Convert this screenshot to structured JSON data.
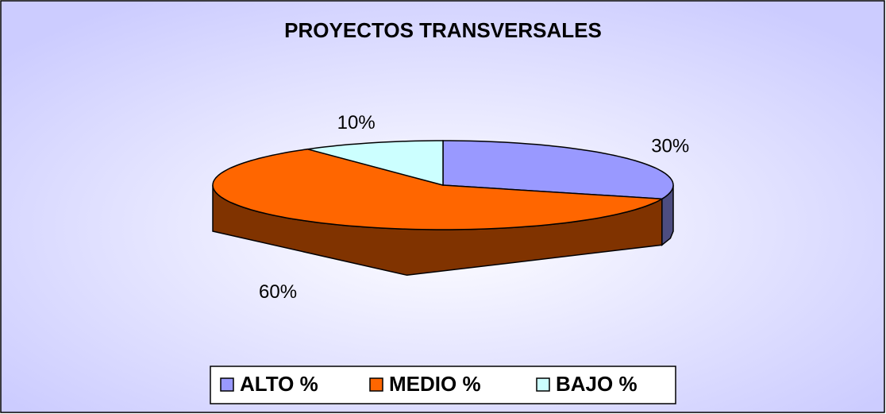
{
  "chart_data": {
    "type": "pie",
    "title": "PROYECTOS TRANSVERSALES",
    "categories": [
      "ALTO %",
      "MEDIO %",
      "BAJO %"
    ],
    "values": [
      30,
      60,
      10
    ],
    "value_labels": [
      "30%",
      "60%",
      "10%"
    ],
    "colors": [
      "#9999ff",
      "#ff6600",
      "#ccffff"
    ],
    "legend": "bottom"
  }
}
